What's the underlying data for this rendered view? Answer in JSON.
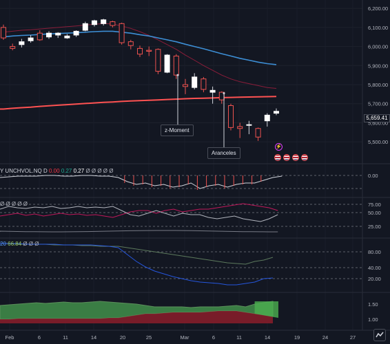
{
  "colors": {
    "background": "#131722",
    "up_candle": "#ffffff",
    "down_candle": "#ef5350",
    "blue_ma": "#3d8fd6",
    "red_ma": "#ff5252",
    "maroon_ma": "#8b1d3a",
    "green_fill": "#3a7d44",
    "red_fill": "#8b1d2a"
  },
  "price_axis": {
    "ticks": [
      "6,200.00",
      "6,100.00",
      "6,000.00",
      "5,900.00",
      "5,800.00",
      "5,700.00",
      "5,600.00",
      "5,500.00"
    ],
    "last_price": "5,659.41"
  },
  "time_axis": {
    "ticks": [
      "Feb",
      "6",
      "11",
      "14",
      "20",
      "25",
      "Mar",
      "6",
      "11",
      "14",
      "19",
      "24",
      "27"
    ]
  },
  "annotations": {
    "z_moment": "z-Moment",
    "aranceles": "Aranceles"
  },
  "pane1": {
    "legend_name": "Y UNCHVOL.NQ D",
    "v1": "0.00",
    "v2": "0.27",
    "v3": "0.27",
    "tail": "Ø Ø Ø Ø Ø",
    "axis": [
      "0.00"
    ]
  },
  "pane2": {
    "legend_tail": "Ø Ø Ø Ø Ø",
    "axis": [
      "75.00",
      "50.00",
      "25.00"
    ]
  },
  "pane3": {
    "legend_prefix": "20",
    "value": "66.84",
    "tail": "Ø Ø Ø",
    "axis": [
      "80.00",
      "40.00",
      "20.00"
    ]
  },
  "pane4": {
    "axis": [
      "1.50",
      "1.00"
    ]
  },
  "icons": {
    "flash": "flash-icon",
    "flags": "us-flag-icon",
    "scale": "tradingview-logo-icon"
  },
  "chart_data": {
    "type": "candlestick",
    "series_ohlc": [
      {
        "x": "Feb 3",
        "open": 6100,
        "high": 6115,
        "low": 6035,
        "close": 6045
      },
      {
        "x": "Feb 4",
        "open": 6000,
        "high": 6015,
        "low": 5980,
        "close": 5990
      },
      {
        "x": "Feb 5",
        "open": 6010,
        "high": 6040,
        "low": 5995,
        "close": 6025
      },
      {
        "x": "Feb 6",
        "open": 6030,
        "high": 6060,
        "low": 6020,
        "close": 6045
      },
      {
        "x": "Feb 7",
        "open": 6070,
        "high": 6085,
        "low": 6030,
        "close": 6035
      },
      {
        "x": "Feb 10",
        "open": 6050,
        "high": 6080,
        "low": 6040,
        "close": 6070
      },
      {
        "x": "Feb 11",
        "open": 6060,
        "high": 6075,
        "low": 6045,
        "close": 6070
      },
      {
        "x": "Feb 12",
        "open": 6045,
        "high": 6065,
        "low": 6040,
        "close": 6055
      },
      {
        "x": "Feb 13",
        "open": 6060,
        "high": 6085,
        "low": 6050,
        "close": 6080
      },
      {
        "x": "Feb 14",
        "open": 6085,
        "high": 6130,
        "low": 6080,
        "close": 6120
      },
      {
        "x": "Feb 18",
        "open": 6115,
        "high": 6140,
        "low": 6105,
        "close": 6135
      },
      {
        "x": "Feb 19",
        "open": 6120,
        "high": 6145,
        "low": 6110,
        "close": 6140
      },
      {
        "x": "Feb 20",
        "open": 6130,
        "high": 6135,
        "low": 6100,
        "close": 6110
      },
      {
        "x": "Feb 21",
        "open": 6120,
        "high": 6125,
        "low": 6010,
        "close": 6020
      },
      {
        "x": "Feb 24",
        "open": 6025,
        "high": 6035,
        "low": 5985,
        "close": 6005
      },
      {
        "x": "Feb 25",
        "open": 5990,
        "high": 6005,
        "low": 5945,
        "close": 5960
      },
      {
        "x": "Feb 26",
        "open": 5980,
        "high": 6000,
        "low": 5950,
        "close": 5975
      },
      {
        "x": "Feb 27",
        "open": 5985,
        "high": 5990,
        "low": 5855,
        "close": 5870
      },
      {
        "x": "Feb 28",
        "open": 5865,
        "high": 5960,
        "low": 5860,
        "close": 5955
      },
      {
        "x": "Mar 3",
        "open": 5950,
        "high": 5960,
        "low": 5830,
        "close": 5850
      },
      {
        "x": "Mar 4",
        "open": 5800,
        "high": 5830,
        "low": 5750,
        "close": 5790
      },
      {
        "x": "Mar 5",
        "open": 5785,
        "high": 5860,
        "low": 5775,
        "close": 5840
      },
      {
        "x": "Mar 6",
        "open": 5830,
        "high": 5840,
        "low": 5760,
        "close": 5775
      },
      {
        "x": "Mar 7",
        "open": 5760,
        "high": 5790,
        "low": 5700,
        "close": 5770
      },
      {
        "x": "Mar 10",
        "open": 5760,
        "high": 5765,
        "low": 5700,
        "close": 5720
      },
      {
        "x": "Mar 11",
        "open": 5690,
        "high": 5700,
        "low": 5560,
        "close": 5575
      },
      {
        "x": "Mar 12",
        "open": 5580,
        "high": 5600,
        "low": 5520,
        "close": 5570
      },
      {
        "x": "Mar 13",
        "open": 5590,
        "high": 5610,
        "low": 5540,
        "close": 5590
      },
      {
        "x": "Mar 14",
        "open": 5570,
        "high": 5575,
        "low": 5505,
        "close": 5525
      },
      {
        "x": "Mar 17",
        "open": 5610,
        "high": 5650,
        "low": 5580,
        "close": 5640
      },
      {
        "x": "Mar 18",
        "open": 5650,
        "high": 5675,
        "low": 5640,
        "close": 5660
      }
    ],
    "blue_ma": [
      6050,
      6055,
      6058,
      6060,
      6063,
      6066,
      6068,
      6070,
      6072,
      6075,
      6078,
      6080,
      6080,
      6075,
      6070,
      6062,
      6055,
      6045,
      6035,
      6025,
      6012,
      6000,
      5988,
      5975,
      5962,
      5950,
      5938,
      5928,
      5918,
      5910,
      5905
    ],
    "red_ma": [
      5672,
      5676,
      5679,
      5682,
      5686,
      5689,
      5692,
      5695,
      5698,
      5701,
      5704,
      5707,
      5709,
      5712,
      5714,
      5716,
      5718,
      5720,
      5722,
      5724,
      5726,
      5728,
      5729,
      5730,
      5732,
      5733,
      5734,
      5735,
      5736,
      5737,
      5738
    ],
    "maroon_ma": [
      6075,
      6080,
      6085,
      6088,
      6092,
      6096,
      6100,
      6104,
      6108,
      6112,
      6117,
      6120,
      6118,
      6108,
      6095,
      6078,
      6058,
      6035,
      6010,
      5985,
      5955,
      5928,
      5900,
      5875,
      5850,
      5830,
      5815,
      5805,
      5795,
      5785,
      5780
    ],
    "ylim": [
      5450,
      6215
    ]
  }
}
